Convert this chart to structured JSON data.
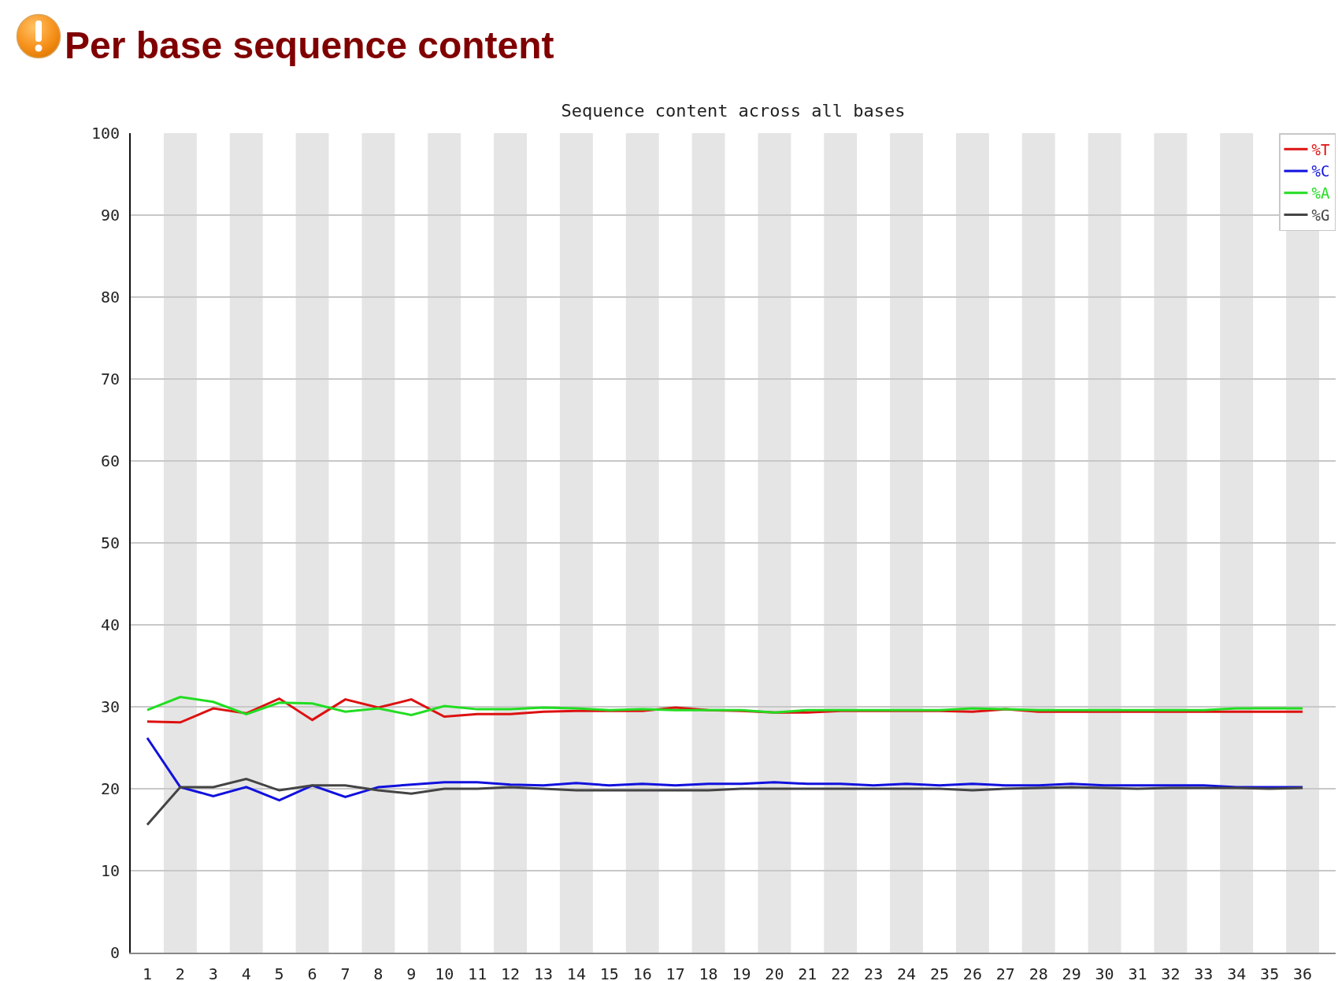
{
  "chart_data": {
    "type": "line",
    "title": "Per base sequence content",
    "subtitle": "Sequence content across all bases",
    "x": [
      1,
      2,
      3,
      4,
      5,
      6,
      7,
      8,
      9,
      10,
      11,
      12,
      13,
      14,
      15,
      16,
      17,
      18,
      19,
      20,
      21,
      22,
      23,
      24,
      25,
      26,
      27,
      28,
      29,
      30,
      31,
      32,
      33,
      34,
      35,
      36
    ],
    "xlim": [
      0.5,
      37
    ],
    "xticks": [
      1,
      2,
      3,
      4,
      5,
      6,
      7,
      8,
      9,
      10,
      11,
      12,
      13,
      14,
      15,
      16,
      17,
      18,
      19,
      20,
      21,
      22,
      23,
      24,
      25,
      26,
      27,
      28,
      29,
      30,
      31,
      32,
      33,
      34,
      35,
      36
    ],
    "ylim": [
      0,
      100
    ],
    "yticks": [
      0,
      10,
      20,
      30,
      40,
      50,
      60,
      70,
      80,
      90,
      100
    ],
    "grid": "y",
    "legend": "top right",
    "marker": "none",
    "line_style": "solid",
    "bands": [
      {
        "axis": "x",
        "from": 1.5,
        "to": 2.5,
        "color": "#e5e5e5"
      },
      {
        "axis": "x",
        "from": 3.5,
        "to": 4.5,
        "color": "#e5e5e5"
      },
      {
        "axis": "x",
        "from": 5.5,
        "to": 6.5,
        "color": "#e5e5e5"
      },
      {
        "axis": "x",
        "from": 7.5,
        "to": 8.5,
        "color": "#e5e5e5"
      },
      {
        "axis": "x",
        "from": 9.5,
        "to": 10.5,
        "color": "#e5e5e5"
      },
      {
        "axis": "x",
        "from": 11.5,
        "to": 12.5,
        "color": "#e5e5e5"
      },
      {
        "axis": "x",
        "from": 13.5,
        "to": 14.5,
        "color": "#e5e5e5"
      },
      {
        "axis": "x",
        "from": 15.5,
        "to": 16.5,
        "color": "#e5e5e5"
      },
      {
        "axis": "x",
        "from": 17.5,
        "to": 18.5,
        "color": "#e5e5e5"
      },
      {
        "axis": "x",
        "from": 19.5,
        "to": 20.5,
        "color": "#e5e5e5"
      },
      {
        "axis": "x",
        "from": 21.5,
        "to": 22.5,
        "color": "#e5e5e5"
      },
      {
        "axis": "x",
        "from": 23.5,
        "to": 24.5,
        "color": "#e5e5e5"
      },
      {
        "axis": "x",
        "from": 25.5,
        "to": 26.5,
        "color": "#e5e5e5"
      },
      {
        "axis": "x",
        "from": 27.5,
        "to": 28.5,
        "color": "#e5e5e5"
      },
      {
        "axis": "x",
        "from": 29.5,
        "to": 30.5,
        "color": "#e5e5e5"
      },
      {
        "axis": "x",
        "from": 31.5,
        "to": 32.5,
        "color": "#e5e5e5"
      },
      {
        "axis": "x",
        "from": 33.5,
        "to": 34.5,
        "color": "#e5e5e5"
      },
      {
        "axis": "x",
        "from": 35.5,
        "to": 36.5,
        "color": "#e5e5e5"
      }
    ],
    "series": [
      {
        "name": "%T",
        "color": "#dd1111",
        "values": [
          28.2,
          28.1,
          29.8,
          29.2,
          31.0,
          28.4,
          30.9,
          29.9,
          30.9,
          28.8,
          29.1,
          29.1,
          29.4,
          29.5,
          29.5,
          29.5,
          29.9,
          29.6,
          29.5,
          29.3,
          29.3,
          29.5,
          29.5,
          29.5,
          29.5,
          29.4,
          29.7,
          29.4,
          29.4,
          29.4,
          29.4,
          29.4,
          29.4,
          29.4,
          29.4,
          29.4
        ]
      },
      {
        "name": "%C",
        "color": "#1111dd",
        "values": [
          26.2,
          20.2,
          19.1,
          20.2,
          18.6,
          20.4,
          19.0,
          20.2,
          20.5,
          20.8,
          20.8,
          20.5,
          20.4,
          20.7,
          20.4,
          20.6,
          20.4,
          20.6,
          20.6,
          20.8,
          20.6,
          20.6,
          20.4,
          20.6,
          20.4,
          20.6,
          20.4,
          20.4,
          20.6,
          20.4,
          20.4,
          20.4,
          20.4,
          20.2,
          20.2,
          20.2
        ]
      },
      {
        "name": "%A",
        "color": "#22dd22",
        "values": [
          29.6,
          31.2,
          30.6,
          29.1,
          30.5,
          30.4,
          29.4,
          29.8,
          29.0,
          30.1,
          29.7,
          29.7,
          29.9,
          29.8,
          29.6,
          29.7,
          29.6,
          29.6,
          29.6,
          29.3,
          29.6,
          29.6,
          29.6,
          29.6,
          29.6,
          29.8,
          29.7,
          29.6,
          29.6,
          29.6,
          29.6,
          29.6,
          29.6,
          29.8,
          29.8,
          29.8
        ]
      },
      {
        "name": "%G",
        "color": "#444444",
        "values": [
          15.6,
          20.2,
          20.2,
          21.2,
          19.8,
          20.4,
          20.4,
          19.8,
          19.4,
          20.0,
          20.0,
          20.2,
          20.0,
          19.8,
          19.8,
          19.8,
          19.8,
          19.8,
          20.0,
          20.0,
          20.0,
          20.0,
          20.0,
          20.0,
          20.0,
          19.8,
          20.0,
          20.1,
          20.2,
          20.1,
          20.0,
          20.1,
          20.1,
          20.1,
          20.0,
          20.1
        ]
      }
    ]
  }
}
